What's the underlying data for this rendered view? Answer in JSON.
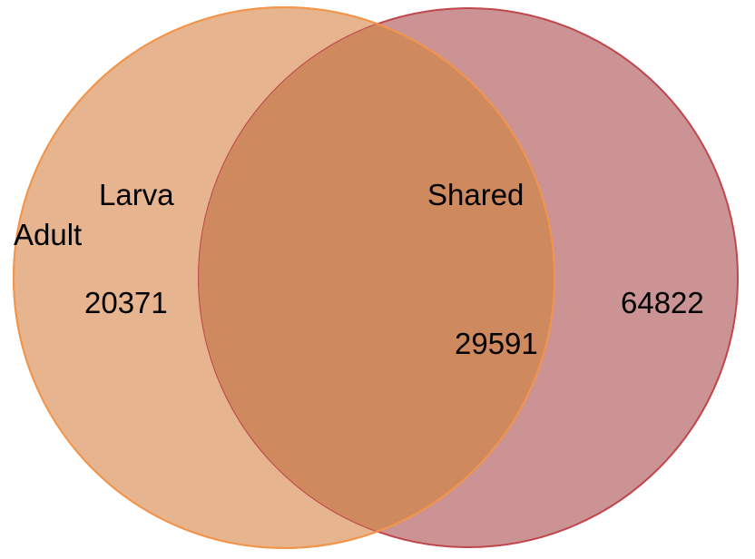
{
  "venn": {
    "labels": {
      "larva": "Larva",
      "adult": "Adult",
      "shared": "Shared"
    },
    "counts": {
      "left_only": "20371",
      "overlap": "29591",
      "right_only": "64822"
    },
    "colors": {
      "left_fill": "#e6b48e",
      "left_stroke": "#f2954a",
      "right_fill": "#cc9395",
      "right_stroke": "#c0474c",
      "overlap_fill": "#cf895e",
      "background": "#ffffff",
      "text": "#000000"
    }
  }
}
